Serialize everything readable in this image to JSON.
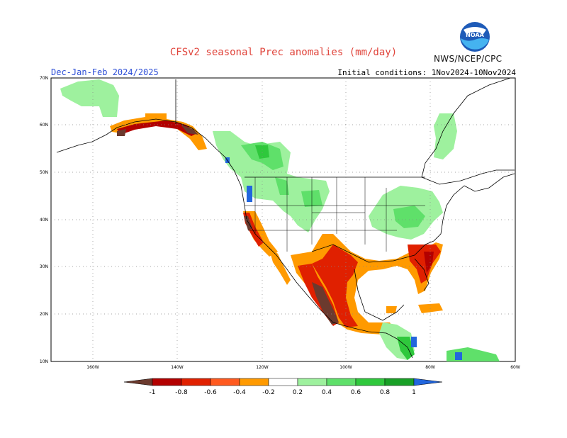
{
  "header": {
    "title": "CFSv2 seasonal Prec anomalies (mm/day)",
    "season": "Dec-Jan-Feb 2024/2025",
    "initial_conditions": "Initial conditions: 1Nov2024-10Nov2024",
    "agency": "NWS/NCEP/CPC",
    "logo_text": "NOAA"
  },
  "map": {
    "lat_labels": [
      "70N",
      "60N",
      "50N",
      "40N",
      "30N",
      "20N",
      "10N"
    ],
    "lon_labels": [
      "160W",
      "140W",
      "120W",
      "100W",
      "80W",
      "60W"
    ],
    "grid": "dotted"
  },
  "legend": {
    "labels": [
      "-1",
      "-0.8",
      "-0.6",
      "-0.4",
      "-0.2",
      "0.2",
      "0.4",
      "0.6",
      "0.8",
      "1"
    ],
    "colors": {
      "lt_neg1": "#6b3a2e",
      "neg1_neg08": "#b30000",
      "neg08_neg06": "#e02000",
      "neg06_neg04": "#ff5a1f",
      "neg04_neg02": "#ff9a00",
      "neutral": "#ffffff",
      "pos02_pos04": "#9ef19e",
      "pos04_pos06": "#5fe06a",
      "pos06_pos08": "#2fc83c",
      "pos08_pos1": "#18a026",
      "gt_pos1": "#2266dd"
    }
  }
}
